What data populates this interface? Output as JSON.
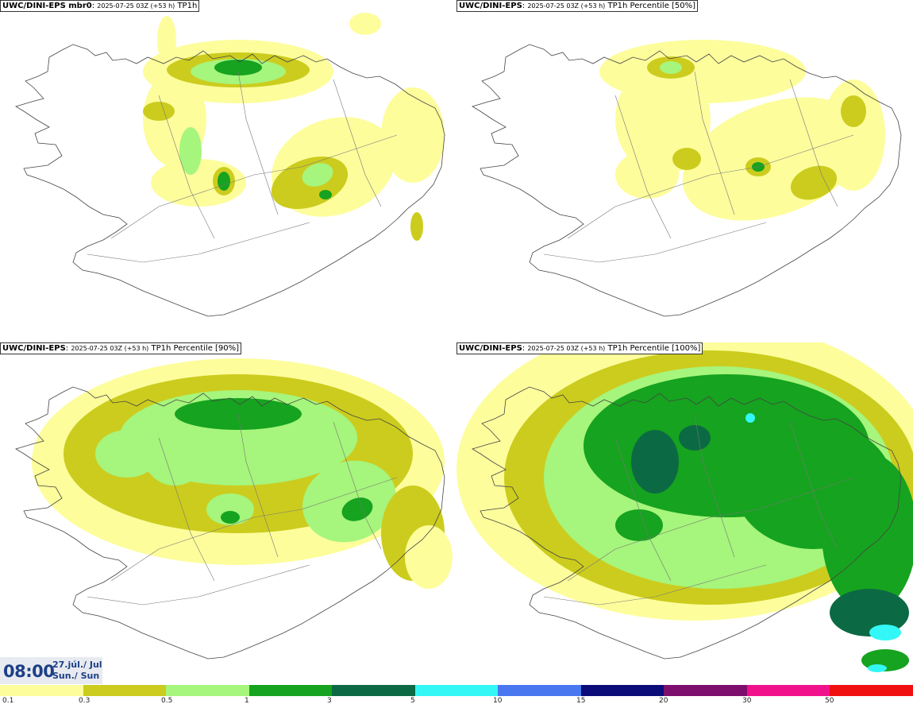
{
  "panels": [
    {
      "model": "UWC/DINI-EPS mbr0",
      "run": "2025-07-25 03Z (+53 h)",
      "field": "TP1h"
    },
    {
      "model": "UWC/DINI-EPS",
      "run": "2025-07-25 03Z (+53 h)",
      "field": "TP1h Percentile [50%]"
    },
    {
      "model": "UWC/DINI-EPS",
      "run": "2025-07-25 03Z (+53 h)",
      "field": "TP1h Percentile [90%]"
    },
    {
      "model": "UWC/DINI-EPS",
      "run": "2025-07-25 03Z (+53 h)",
      "field": "TP1h Percentile [100%]"
    }
  ],
  "valid_time": {
    "time": "08:00",
    "date_line1": "27.júl./ Jul",
    "date_line2": "Sun./ Sun"
  },
  "legend": {
    "ticks": [
      "0.1",
      "0.3",
      "0.5",
      "1",
      "3",
      "5",
      "10",
      "15",
      "20",
      "30",
      "50"
    ],
    "colors": [
      "#fdfd9c",
      "#cccc1e",
      "#a6f57c",
      "#16a31f",
      "#0b6a43",
      "#33f7f7",
      "#4877ef",
      "#0b0b7a",
      "#7d0e6d",
      "#f0128a",
      "#f01010"
    ]
  },
  "precip_colors": {
    "light": "#fdfd9c",
    "olive": "#cccc1e",
    "lightgreen": "#a6f57c",
    "green": "#16a31f",
    "darkgreen": "#0b6a43",
    "cyan": "#33f7f7"
  }
}
